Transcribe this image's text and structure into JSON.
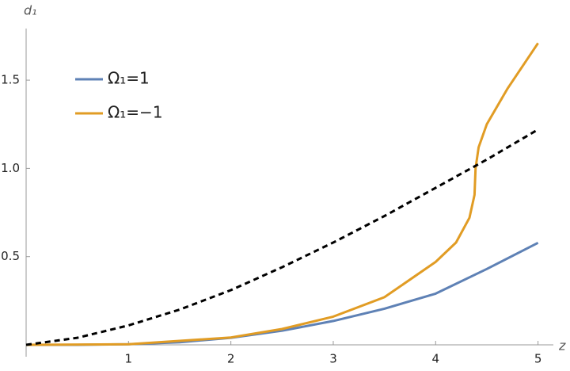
{
  "chart_data": {
    "type": "line",
    "x_label": "z",
    "y_label": "d₁",
    "xlim": [
      0,
      5.15
    ],
    "ylim": [
      0,
      1.77
    ],
    "xticks": [
      1,
      2,
      3,
      4,
      5
    ],
    "yticks": [
      0.5,
      {
        "value": 1,
        "label": "1.0"
      },
      1.5
    ],
    "legend": "top-left",
    "series": [
      {
        "name": "Ω₁=1",
        "color": "#5e81b5",
        "style": "solid",
        "x": [
          0,
          0.5,
          1,
          1.5,
          2,
          2.5,
          3,
          3.5,
          4,
          4.5,
          5
        ],
        "values": [
          0,
          0,
          0.003,
          0.015,
          0.04,
          0.08,
          0.135,
          0.205,
          0.29,
          0.43,
          0.578
        ]
      },
      {
        "name": "Ω₁=−1",
        "color": "#e19c24",
        "style": "solid",
        "x": [
          0,
          1,
          2,
          2.5,
          3,
          3.5,
          4,
          4.2,
          4.33,
          4.38,
          4.39,
          4.42,
          4.5,
          4.7,
          5
        ],
        "values": [
          0,
          0.003,
          0.042,
          0.09,
          0.16,
          0.27,
          0.47,
          0.58,
          0.72,
          0.85,
          1.0,
          1.12,
          1.25,
          1.45,
          1.71
        ]
      },
      {
        "color": "#000000",
        "style": "dashed",
        "x": [
          0,
          0.5,
          1,
          1.5,
          2,
          2.5,
          3,
          3.5,
          4,
          4.5,
          5
        ],
        "values": [
          0,
          0.04,
          0.11,
          0.2,
          0.31,
          0.44,
          0.58,
          0.73,
          0.89,
          1.05,
          1.22
        ]
      }
    ]
  }
}
